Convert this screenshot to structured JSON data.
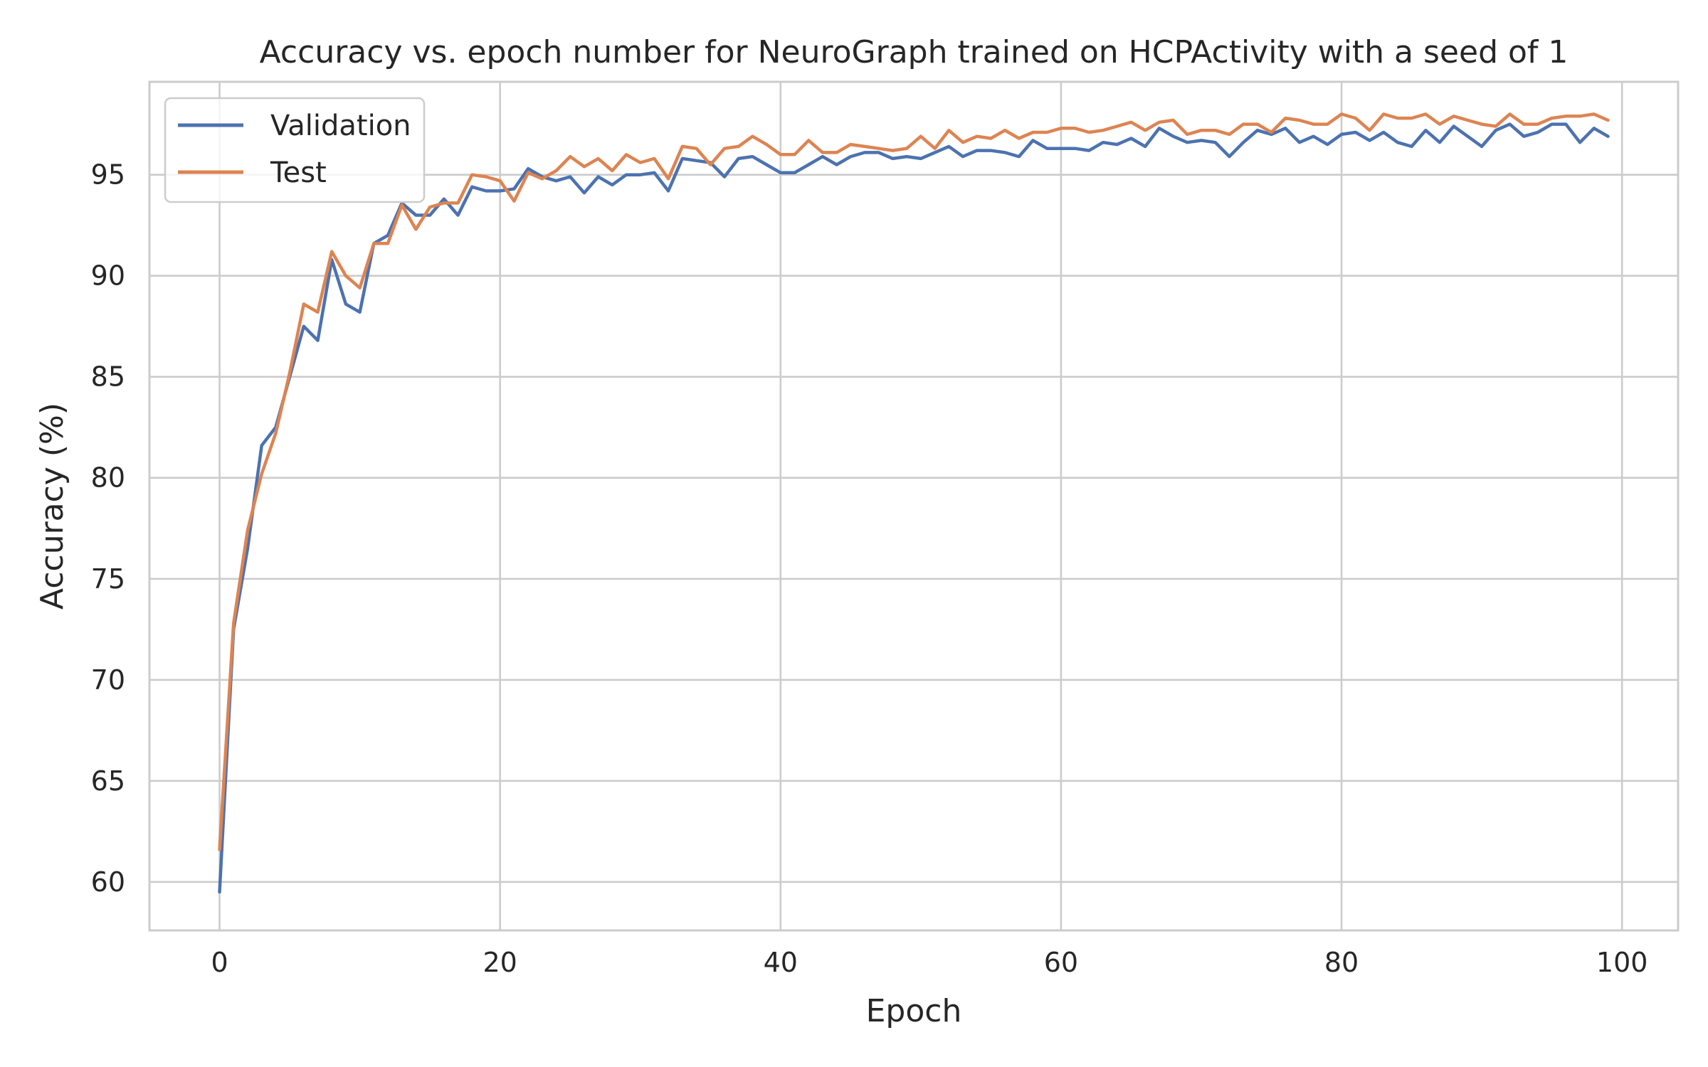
{
  "chart_data": {
    "type": "line",
    "title": "Accuracy vs. epoch number for NeuroGraph trained on HCPActivity with a seed of 1",
    "xlabel": "Epoch",
    "ylabel": "Accuracy (%)",
    "xlim": [
      -5,
      104
    ],
    "ylim": [
      57.6,
      99.6
    ],
    "xticks": [
      0,
      20,
      40,
      60,
      80,
      100
    ],
    "yticks": [
      60,
      65,
      70,
      75,
      80,
      85,
      90,
      95
    ],
    "grid": true,
    "legend_position": "top-left",
    "colors": {
      "Validation": "#4c72b0",
      "Test": "#dd8452"
    },
    "x": [
      0,
      1,
      2,
      3,
      4,
      5,
      6,
      7,
      8,
      9,
      10,
      11,
      12,
      13,
      14,
      15,
      16,
      17,
      18,
      19,
      20,
      21,
      22,
      23,
      24,
      25,
      26,
      27,
      28,
      29,
      30,
      31,
      32,
      33,
      34,
      35,
      36,
      37,
      38,
      39,
      40,
      41,
      42,
      43,
      44,
      45,
      46,
      47,
      48,
      49,
      50,
      51,
      52,
      53,
      54,
      55,
      56,
      57,
      58,
      59,
      60,
      61,
      62,
      63,
      64,
      65,
      66,
      67,
      68,
      69,
      70,
      71,
      72,
      73,
      74,
      75,
      76,
      77,
      78,
      79,
      80,
      81,
      82,
      83,
      84,
      85,
      86,
      87,
      88,
      89,
      90,
      91,
      92,
      93,
      94,
      95,
      96,
      97,
      98,
      99
    ],
    "series": [
      {
        "name": "Validation",
        "values": [
          59.5,
          72.5,
          76.5,
          81.6,
          82.5,
          85.0,
          87.5,
          86.8,
          90.8,
          88.6,
          88.2,
          91.6,
          92.0,
          93.6,
          93.0,
          93.0,
          93.8,
          93.0,
          94.4,
          94.2,
          94.2,
          94.3,
          95.3,
          94.9,
          94.7,
          94.9,
          94.1,
          94.9,
          94.5,
          95.0,
          95.0,
          95.1,
          94.2,
          95.8,
          95.7,
          95.6,
          94.9,
          95.8,
          95.9,
          95.5,
          95.1,
          95.1,
          95.5,
          95.9,
          95.5,
          95.9,
          96.1,
          96.1,
          95.8,
          95.9,
          95.8,
          96.1,
          96.4,
          95.9,
          96.2,
          96.2,
          96.1,
          95.9,
          96.7,
          96.3,
          96.3,
          96.3,
          96.2,
          96.6,
          96.5,
          96.8,
          96.4,
          97.3,
          96.9,
          96.6,
          96.7,
          96.6,
          95.9,
          96.6,
          97.2,
          97.0,
          97.3,
          96.6,
          96.9,
          96.5,
          97.0,
          97.1,
          96.7,
          97.1,
          96.6,
          96.4,
          97.2,
          96.6,
          97.4,
          96.9,
          96.4,
          97.2,
          97.5,
          96.9,
          97.1,
          97.5,
          97.5,
          96.6,
          97.3,
          96.9
        ]
      },
      {
        "name": "Test",
        "values": [
          61.6,
          72.8,
          77.4,
          80.2,
          82.2,
          85.2,
          88.6,
          88.2,
          91.2,
          90.0,
          89.4,
          91.6,
          91.6,
          93.5,
          92.3,
          93.4,
          93.6,
          93.6,
          95.0,
          94.9,
          94.7,
          93.7,
          95.1,
          94.8,
          95.2,
          95.9,
          95.4,
          95.8,
          95.2,
          96.0,
          95.6,
          95.8,
          94.8,
          96.4,
          96.3,
          95.5,
          96.3,
          96.4,
          96.9,
          96.5,
          96.0,
          96.0,
          96.7,
          96.1,
          96.1,
          96.5,
          96.4,
          96.3,
          96.2,
          96.3,
          96.9,
          96.3,
          97.2,
          96.6,
          96.9,
          96.8,
          97.2,
          96.8,
          97.1,
          97.1,
          97.3,
          97.3,
          97.1,
          97.2,
          97.4,
          97.6,
          97.2,
          97.6,
          97.7,
          97.0,
          97.2,
          97.2,
          97.0,
          97.5,
          97.5,
          97.1,
          97.8,
          97.7,
          97.5,
          97.5,
          98.0,
          97.8,
          97.2,
          98.0,
          97.8,
          97.8,
          98.0,
          97.5,
          97.9,
          97.7,
          97.5,
          97.4,
          98.0,
          97.5,
          97.5,
          97.8,
          97.9,
          97.9,
          98.0,
          97.7
        ]
      }
    ]
  }
}
